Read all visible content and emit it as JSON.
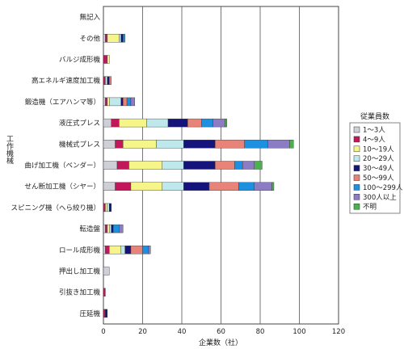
{
  "chart_data": {
    "type": "bar",
    "orientation": "horizontal",
    "stacked": true,
    "categories": [
      "無記入",
      "その他",
      "バルジ成形機",
      "高エネルギ速度加工機",
      "鍛造機（エアハンマ等）",
      "液圧式プレス",
      "機械式プレス",
      "曲げ加工機（ベンダー）",
      "せん断加工機（シヤー）",
      "スピニング機（へら絞り機）",
      "転造盤",
      "ロール成形機",
      "押出し加工機",
      "引抜き加工機",
      "圧延機"
    ],
    "series": [
      {
        "name": "1～3人",
        "color": "#cfcfd8",
        "values": [
          0,
          1,
          0,
          0,
          1,
          4,
          6,
          7,
          6,
          0,
          1,
          1,
          3,
          0,
          0
        ]
      },
      {
        "name": "4～9人",
        "color": "#c2185b",
        "values": [
          0,
          1,
          2,
          1,
          1,
          4,
          4,
          6,
          8,
          1,
          1,
          2,
          0,
          1,
          1
        ]
      },
      {
        "name": "10～19人",
        "color": "#f5f58a",
        "values": [
          0,
          6,
          1,
          0,
          1,
          14,
          17,
          17,
          16,
          1,
          1,
          6,
          0,
          0,
          0
        ]
      },
      {
        "name": "20～29人",
        "color": "#bfe8ec",
        "values": [
          0,
          1,
          0,
          1,
          6,
          11,
          14,
          11,
          11,
          1,
          1,
          2,
          0,
          0,
          0
        ]
      },
      {
        "name": "30～49人",
        "color": "#14147a",
        "values": [
          0,
          1,
          0,
          1,
          1,
          10,
          16,
          16,
          13,
          1,
          1,
          3,
          0,
          0,
          1
        ]
      },
      {
        "name": "50～99人",
        "color": "#e8837a",
        "values": [
          0,
          0,
          0,
          1,
          2,
          7,
          15,
          10,
          15,
          0,
          0,
          6,
          0,
          0,
          0
        ]
      },
      {
        "name": "100～299人",
        "color": "#1e90e0",
        "values": [
          0,
          1,
          0,
          0,
          2,
          6,
          12,
          4,
          8,
          0,
          3,
          3,
          0,
          0,
          0
        ]
      },
      {
        "name": "300人以上",
        "color": "#8c7cc4",
        "values": [
          0,
          0,
          0,
          0,
          2,
          6,
          11,
          6,
          9,
          0,
          2,
          1,
          0,
          0,
          0
        ]
      },
      {
        "name": "不明",
        "color": "#4caf50",
        "values": [
          0,
          0,
          0,
          0,
          0,
          1,
          2,
          4,
          1,
          0,
          0,
          0,
          0,
          0,
          0
        ]
      }
    ],
    "xlabel": "企業数（社）",
    "ylabel": "工作機械",
    "xlim": [
      0,
      120
    ],
    "xticks": [
      0,
      20,
      40,
      60,
      80,
      100,
      120
    ],
    "grid": "vertical",
    "legend_title": "従業員数",
    "legend_position": "right"
  }
}
